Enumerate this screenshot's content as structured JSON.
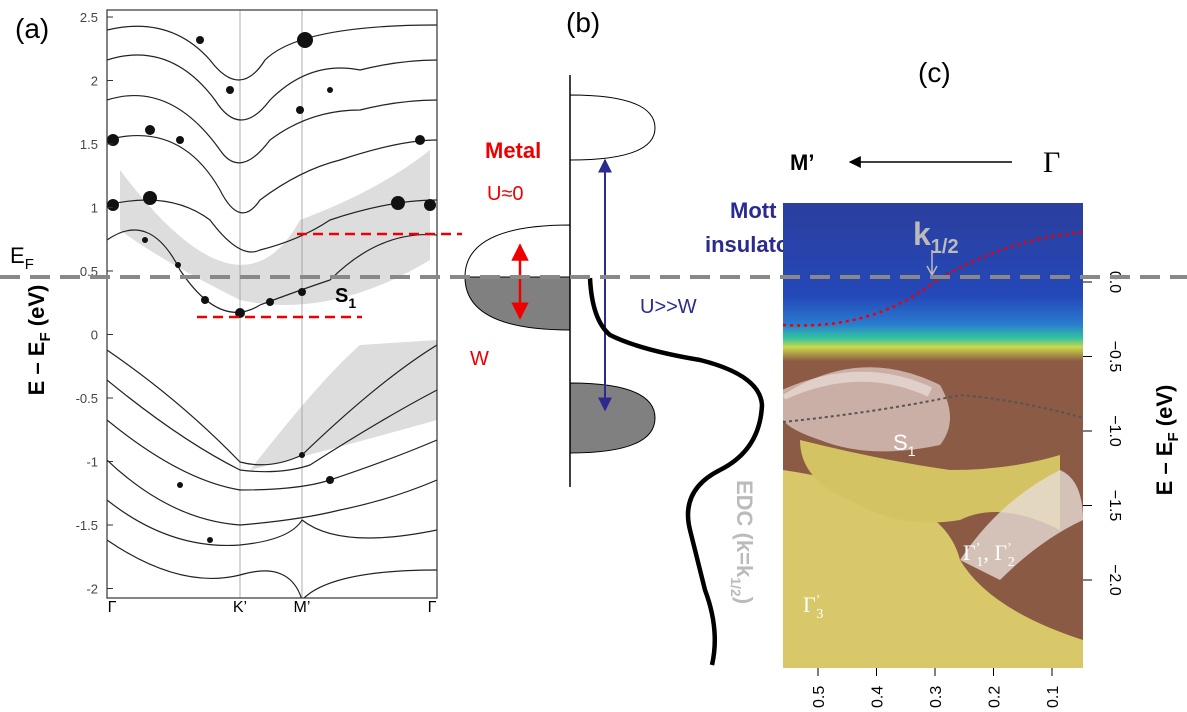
{
  "panel_a": {
    "label": "(a)",
    "yticks": [
      "2.5",
      "2",
      "1.5",
      "1",
      "0.5",
      "0",
      "-0.5",
      "-1",
      "-1.5",
      "-2"
    ],
    "xticks": [
      "Γ",
      "K’",
      "M’",
      "Γ"
    ],
    "ylabel": [
      "E – E",
      "F",
      " (eV)"
    ],
    "fermi_label": [
      "E",
      "F"
    ],
    "band_label": [
      "S",
      "1"
    ]
  },
  "panel_b": {
    "label": "(b)",
    "metal": "Metal",
    "metal_u": "U≈0",
    "width": "W",
    "mott": [
      "Mott",
      "insulator ?"
    ],
    "mott_u": "U>>W",
    "edc": [
      "EDC (k=k",
      "1/2",
      ")"
    ]
  },
  "panel_c": {
    "label": "(c)",
    "direction_from": "M’",
    "direction_to": "Γ",
    "k_label": [
      "k",
      "1/2"
    ],
    "s1_label": [
      "S",
      "1"
    ],
    "gamma12_label": [
      "Γ",
      "’",
      "1",
      ", Γ",
      "’",
      "2"
    ],
    "gamma3_label": [
      "Γ",
      "’",
      "3"
    ],
    "yticks": [
      "0.0",
      "−0.5",
      "−1.0",
      "−1.5",
      "−2.0"
    ],
    "xticks": [
      "0.5",
      "0.4",
      "0.3",
      "0.2",
      "0.1"
    ],
    "ylabel": [
      "E – E",
      "F",
      " (eV)"
    ]
  }
}
